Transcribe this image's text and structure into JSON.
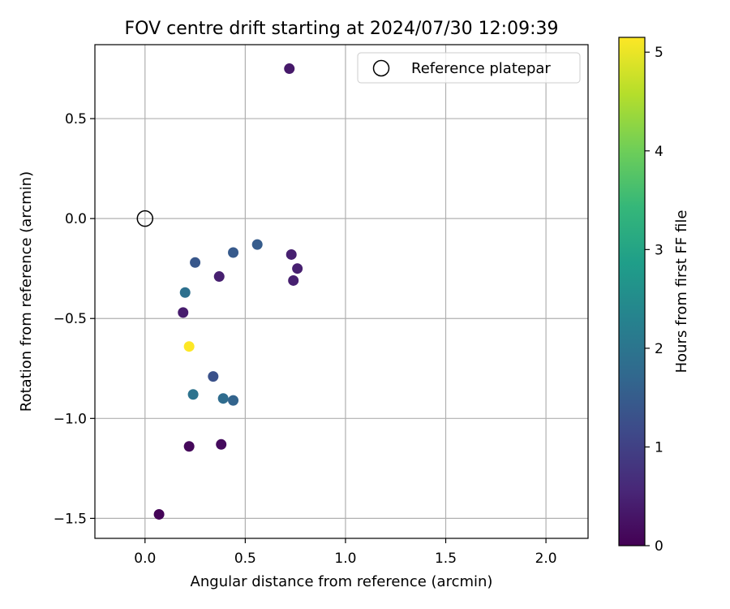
{
  "chart_data": {
    "type": "scatter",
    "title": "FOV centre drift starting at 2024/07/30 12:09:39",
    "xlabel": "Angular distance from reference (arcmin)",
    "ylabel": "Rotation from reference (arcmin)",
    "xlim": [
      -0.25,
      2.21
    ],
    "ylim": [
      -1.6,
      0.87
    ],
    "x_ticks": [
      0.0,
      0.5,
      1.0,
      1.5,
      2.0
    ],
    "x_tick_labels": [
      "0.0",
      "0.5",
      "1.0",
      "1.5",
      "2.0"
    ],
    "y_ticks": [
      -1.5,
      -1.0,
      -0.5,
      0.0,
      0.5
    ],
    "y_tick_labels": [
      "−1.5",
      "−1.0",
      "−0.5",
      "0.0",
      "0.5"
    ],
    "grid": true,
    "legend": {
      "position": "top-right",
      "entries": [
        "Reference platepar"
      ]
    },
    "reference_point": {
      "x": 0.0,
      "y": 0.0,
      "label": "Reference platepar"
    },
    "points": [
      {
        "x": 0.07,
        "y": -1.48,
        "hours": 0.05
      },
      {
        "x": 0.22,
        "y": -1.14,
        "hours": 0.1
      },
      {
        "x": 0.38,
        "y": -1.13,
        "hours": 0.15
      },
      {
        "x": 0.19,
        "y": -0.47,
        "hours": 0.4
      },
      {
        "x": 0.37,
        "y": -0.29,
        "hours": 0.45
      },
      {
        "x": 0.73,
        "y": -0.18,
        "hours": 0.45
      },
      {
        "x": 0.76,
        "y": -0.25,
        "hours": 0.45
      },
      {
        "x": 0.74,
        "y": -0.31,
        "hours": 0.45
      },
      {
        "x": 0.72,
        "y": 0.75,
        "hours": 0.35
      },
      {
        "x": 0.25,
        "y": -0.22,
        "hours": 1.4
      },
      {
        "x": 0.44,
        "y": -0.17,
        "hours": 1.45
      },
      {
        "x": 0.56,
        "y": -0.13,
        "hours": 1.5
      },
      {
        "x": 0.34,
        "y": -0.79,
        "hours": 1.3
      },
      {
        "x": 0.2,
        "y": -0.37,
        "hours": 1.9
      },
      {
        "x": 0.24,
        "y": -0.88,
        "hours": 1.95
      },
      {
        "x": 0.39,
        "y": -0.9,
        "hours": 1.8
      },
      {
        "x": 0.44,
        "y": -0.91,
        "hours": 1.65
      },
      {
        "x": 0.22,
        "y": -0.64,
        "hours": 5.15
      }
    ],
    "colorbar": {
      "label": "Hours from first FF file",
      "range": [
        0,
        5.15
      ],
      "ticks": [
        0,
        1,
        2,
        3,
        4,
        5
      ],
      "tick_labels": [
        "0",
        "1",
        "2",
        "3",
        "4",
        "5"
      ],
      "colormap": "viridis",
      "colormap_stops": [
        "#440154",
        "#482878",
        "#3e4989",
        "#31688e",
        "#26828e",
        "#1f9e89",
        "#35b779",
        "#6ece58",
        "#b5de2b",
        "#fde725"
      ]
    }
  }
}
